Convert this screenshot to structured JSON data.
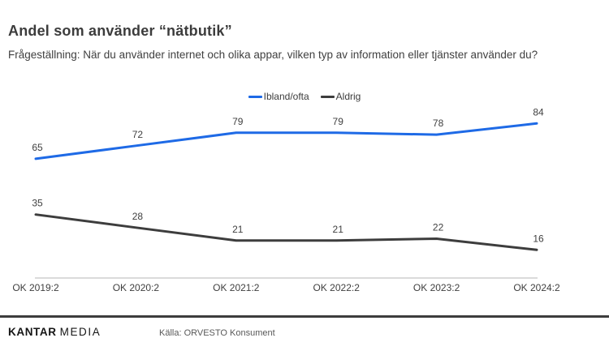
{
  "header": {
    "title": "Andel som använder “nätbutik”",
    "subtitle": "Frågeställning: När du använder internet och olika appar, vilken typ av information eller tjänster använder du?"
  },
  "chart_data": {
    "type": "line",
    "categories": [
      "OK 2019:2",
      "OK 2020:2",
      "OK 2021:2",
      "OK 2022:2",
      "OK 2023:2",
      "OK 2024:2"
    ],
    "series": [
      {
        "name": "Ibland/ofta",
        "color": "#1e6ae6",
        "values": [
          65,
          72,
          79,
          79,
          78,
          84
        ]
      },
      {
        "name": "Aldrig",
        "color": "#3d3d3d",
        "values": [
          35,
          28,
          21,
          21,
          22,
          16
        ]
      }
    ],
    "ylim": [
      0,
      90
    ],
    "grid": false,
    "data_labels": true,
    "legend_position": "top-center",
    "axis_line_color": "#b7b7b7",
    "label_color": "#3f3f3f"
  },
  "footer": {
    "logo_primary": "KANTAR",
    "logo_secondary": "MEDIA",
    "source": "Källa: ORVESTO Konsument"
  }
}
